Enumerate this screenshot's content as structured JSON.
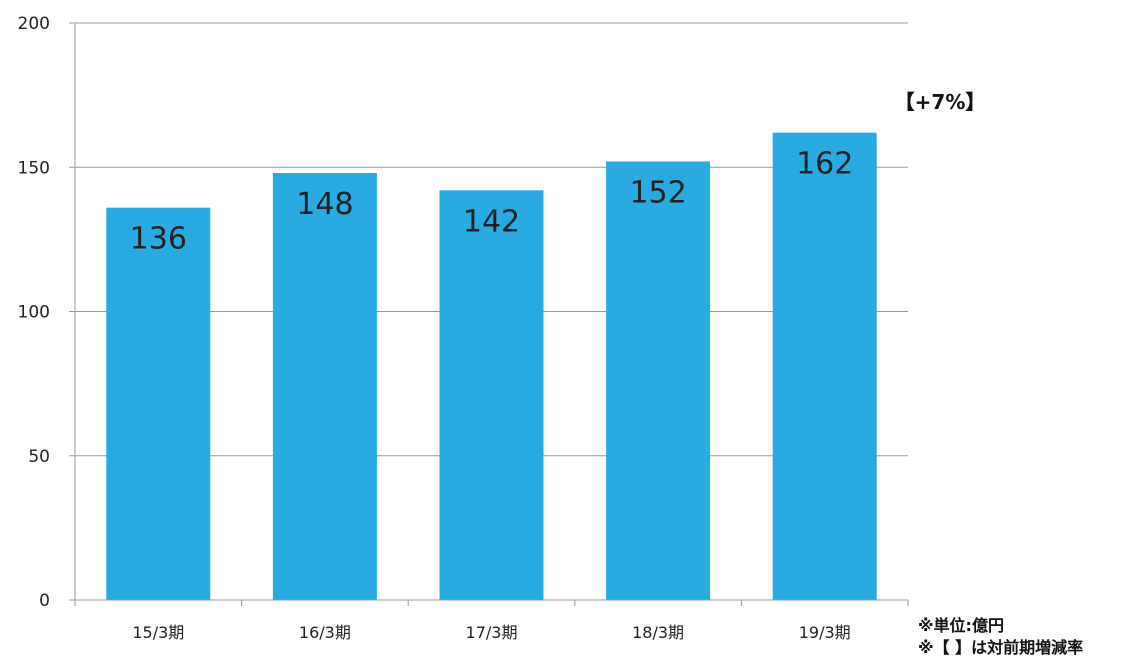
{
  "chart_data": {
    "type": "bar",
    "categories": [
      "15/3期",
      "16/3期",
      "17/3期",
      "18/3期",
      "19/3期"
    ],
    "values": [
      136,
      148,
      142,
      152,
      162
    ],
    "data_labels": [
      "136",
      "148",
      "142",
      "152",
      "162"
    ],
    "ylim": [
      0,
      200
    ],
    "yticks": [
      0,
      50,
      100,
      150,
      200
    ],
    "grid": true,
    "bar_color": "#29abe2",
    "annotation": "【+7%】"
  },
  "notes": {
    "unit": "※単位:億円",
    "bracket": "※【 】は対前期増減率"
  }
}
